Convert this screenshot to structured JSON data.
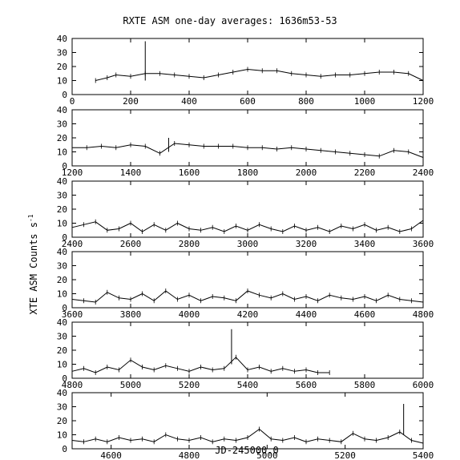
{
  "chart_data": {
    "type": "line",
    "title": "RXTE ASM one-day averages: 1636m53-53",
    "xlabel": "JD-245000.0",
    "ylabel": "XTE ASM Counts s",
    "ylabel_superscript": "-1",
    "grid": false,
    "legend": "none",
    "panels": [
      {
        "xlim": [
          0,
          1200
        ],
        "ylim": [
          0,
          40
        ],
        "xticks": [
          "0",
          "200",
          "400",
          "600",
          "800",
          "1000",
          "1200"
        ],
        "yticks": [
          "0",
          "10",
          "20",
          "30",
          "40"
        ],
        "series": [
          {
            "x": [
              80,
              120,
              150,
              200,
              250,
              300,
              350,
              400,
              450,
              500,
              550,
              600,
              650,
              700,
              750,
              800,
              850,
              900,
              950,
              1000,
              1050,
              1100,
              1150,
              1200
            ],
            "y": [
              10,
              12,
              14,
              13,
              15,
              15,
              14,
              13,
              12,
              14,
              16,
              18,
              17,
              17,
              15,
              14,
              13,
              14,
              14,
              15,
              16,
              16,
              15,
              10
            ]
          }
        ],
        "spikes": [
          {
            "x": 250,
            "y": 38
          }
        ]
      },
      {
        "xlim": [
          1200,
          2400
        ],
        "ylim": [
          0,
          40
        ],
        "xticks": [
          "1200",
          "1400",
          "1600",
          "1800",
          "2000",
          "2200",
          "2400"
        ],
        "yticks": [
          "0",
          "10",
          "20",
          "30",
          "40"
        ],
        "series": [
          {
            "x": [
              1200,
              1250,
              1300,
              1350,
              1400,
              1450,
              1500,
              1550,
              1600,
              1650,
              1700,
              1750,
              1800,
              1850,
              1900,
              1950,
              2000,
              2050,
              2100,
              2150,
              2200,
              2250,
              2300,
              2350,
              2400
            ],
            "y": [
              13,
              13,
              14,
              13,
              15,
              14,
              9,
              16,
              15,
              14,
              14,
              14,
              13,
              13,
              12,
              13,
              12,
              11,
              10,
              9,
              8,
              7,
              11,
              10,
              6
            ]
          }
        ],
        "spikes": [
          {
            "x": 1530,
            "y": 20
          }
        ]
      },
      {
        "xlim": [
          2400,
          3600
        ],
        "ylim": [
          0,
          40
        ],
        "xticks": [
          "2400",
          "2600",
          "2800",
          "3000",
          "3200",
          "3400",
          "3600"
        ],
        "yticks": [
          "0",
          "10",
          "20",
          "30",
          "40"
        ],
        "series": [
          {
            "x": [
              2400,
              2440,
              2480,
              2520,
              2560,
              2600,
              2640,
              2680,
              2720,
              2760,
              2800,
              2840,
              2880,
              2920,
              2960,
              3000,
              3040,
              3080,
              3120,
              3160,
              3200,
              3240,
              3280,
              3320,
              3360,
              3400,
              3440,
              3480,
              3520,
              3560,
              3600
            ],
            "y": [
              7,
              9,
              11,
              5,
              6,
              10,
              4,
              9,
              5,
              10,
              6,
              5,
              7,
              4,
              8,
              5,
              9,
              6,
              4,
              8,
              5,
              7,
              4,
              8,
              6,
              9,
              5,
              7,
              4,
              6,
              12
            ]
          }
        ]
      },
      {
        "xlim": [
          3600,
          4800
        ],
        "ylim": [
          0,
          40
        ],
        "xticks": [
          "3600",
          "3800",
          "4000",
          "4200",
          "4400",
          "4600",
          "4800"
        ],
        "yticks": [
          "0",
          "10",
          "20",
          "30",
          "40"
        ],
        "series": [
          {
            "x": [
              3600,
              3640,
              3680,
              3720,
              3760,
              3800,
              3840,
              3880,
              3920,
              3960,
              4000,
              4040,
              4080,
              4120,
              4160,
              4200,
              4240,
              4280,
              4320,
              4360,
              4400,
              4440,
              4480,
              4520,
              4560,
              4600,
              4640,
              4680,
              4720,
              4760,
              4800
            ],
            "y": [
              6,
              5,
              4,
              11,
              7,
              6,
              10,
              5,
              12,
              6,
              9,
              5,
              8,
              7,
              5,
              12,
              9,
              7,
              10,
              6,
              8,
              5,
              9,
              7,
              6,
              8,
              5,
              9,
              6,
              5,
              4
            ]
          }
        ]
      },
      {
        "xlim": [
          4800,
          6000
        ],
        "ylim": [
          0,
          40
        ],
        "xticks": [
          "4800",
          "5000",
          "5200",
          "5400",
          "5600",
          "5800",
          "6000"
        ],
        "yticks": [
          "0",
          "10",
          "20",
          "30",
          "40"
        ],
        "series": [
          {
            "x": [
              4800,
              4840,
              4880,
              4920,
              4960,
              5000,
              5040,
              5080,
              5120,
              5160,
              5200,
              5240,
              5280,
              5320,
              5360,
              5400,
              5440,
              5480,
              5520,
              5560,
              5600,
              5640,
              5680
            ],
            "y": [
              5,
              7,
              4,
              8,
              6,
              13,
              8,
              6,
              9,
              7,
              5,
              8,
              6,
              7,
              15,
              6,
              8,
              5,
              7,
              5,
              6,
              4,
              4
            ]
          }
        ],
        "spikes": [
          {
            "x": 5345,
            "y": 35
          }
        ]
      },
      {
        "xlim": [
          4500,
          5400
        ],
        "ylim": [
          0,
          40
        ],
        "xticks": [
          "4600",
          "4800",
          "5000",
          "5200",
          "5400"
        ],
        "yticks": [
          "0",
          "10",
          "20",
          "30",
          "40"
        ],
        "series": [
          {
            "x": [
              4500,
              4530,
              4560,
              4590,
              4620,
              4650,
              4680,
              4710,
              4740,
              4770,
              4800,
              4830,
              4860,
              4890,
              4920,
              4950,
              4980,
              5010,
              5040,
              5070,
              5100,
              5130,
              5160,
              5190,
              5220,
              5250,
              5280,
              5310,
              5340,
              5370,
              5400
            ],
            "y": [
              6,
              5,
              7,
              5,
              8,
              6,
              7,
              5,
              10,
              7,
              6,
              8,
              5,
              7,
              6,
              8,
              14,
              7,
              6,
              8,
              5,
              7,
              6,
              5,
              11,
              7,
              6,
              8,
              12,
              6,
              4
            ]
          }
        ],
        "spikes": [
          {
            "x": 5350,
            "y": 32
          }
        ]
      }
    ]
  }
}
